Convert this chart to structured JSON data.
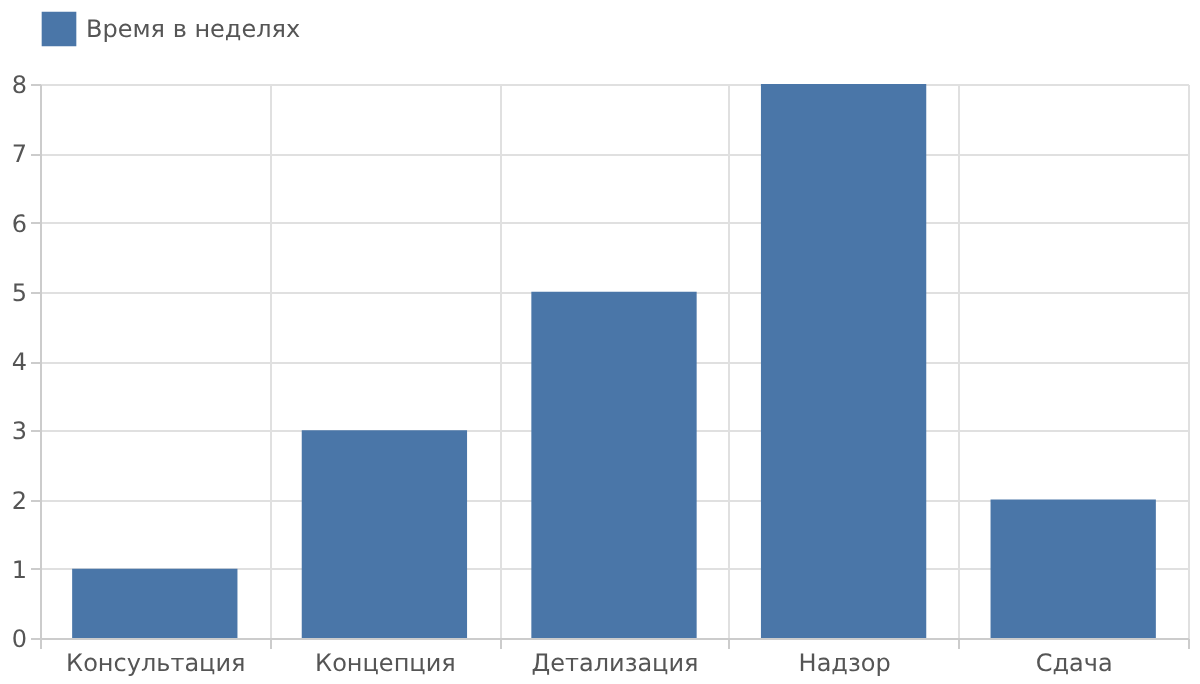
{
  "chart_data": {
    "type": "bar",
    "categories": [
      "Консультация",
      "Концепция",
      "Детализация",
      "Надзор",
      "Сдача"
    ],
    "series": [
      {
        "name": "Время в неделях",
        "color": "#4a76a8",
        "values": [
          1,
          3,
          5,
          8,
          2
        ]
      }
    ],
    "ylim": [
      0,
      8
    ],
    "yticks": [
      0,
      1,
      2,
      3,
      4,
      5,
      6,
      7,
      8
    ],
    "grid": true,
    "legend": "top"
  }
}
